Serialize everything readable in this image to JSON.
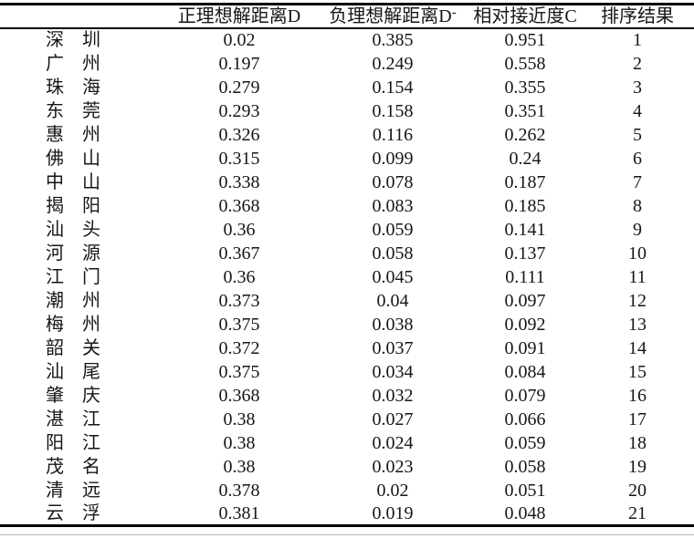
{
  "table": {
    "header": {
      "city": "",
      "d_plus": "正理想解距离D",
      "d_minus_main": "负理想解距离D",
      "d_minus_sup": "-",
      "closeness": "相对接近度C",
      "rank": "排序结果"
    },
    "rows": [
      {
        "city": "深　圳",
        "d_plus": "0.02",
        "d_minus": "0.385",
        "closeness": "0.951",
        "rank": "1"
      },
      {
        "city": "广　州",
        "d_plus": "0.197",
        "d_minus": "0.249",
        "closeness": "0.558",
        "rank": "2"
      },
      {
        "city": "珠　海",
        "d_plus": "0.279",
        "d_minus": "0.154",
        "closeness": "0.355",
        "rank": "3"
      },
      {
        "city": "东　莞",
        "d_plus": "0.293",
        "d_minus": "0.158",
        "closeness": "0.351",
        "rank": "4"
      },
      {
        "city": "惠　州",
        "d_plus": "0.326",
        "d_minus": "0.116",
        "closeness": "0.262",
        "rank": "5"
      },
      {
        "city": "佛　山",
        "d_plus": "0.315",
        "d_minus": "0.099",
        "closeness": "0.24",
        "rank": "6"
      },
      {
        "city": "中　山",
        "d_plus": "0.338",
        "d_minus": "0.078",
        "closeness": "0.187",
        "rank": "7"
      },
      {
        "city": "揭　阳",
        "d_plus": "0.368",
        "d_minus": "0.083",
        "closeness": "0.185",
        "rank": "8"
      },
      {
        "city": "汕　头",
        "d_plus": "0.36",
        "d_minus": "0.059",
        "closeness": "0.141",
        "rank": "9"
      },
      {
        "city": "河　源",
        "d_plus": "0.367",
        "d_minus": "0.058",
        "closeness": "0.137",
        "rank": "10"
      },
      {
        "city": "江　门",
        "d_plus": "0.36",
        "d_minus": "0.045",
        "closeness": "0.111",
        "rank": "11"
      },
      {
        "city": "潮　州",
        "d_plus": "0.373",
        "d_minus": "0.04",
        "closeness": "0.097",
        "rank": "12"
      },
      {
        "city": "梅　州",
        "d_plus": "0.375",
        "d_minus": "0.038",
        "closeness": "0.092",
        "rank": "13"
      },
      {
        "city": "韶　关",
        "d_plus": "0.372",
        "d_minus": "0.037",
        "closeness": "0.091",
        "rank": "14"
      },
      {
        "city": "汕　尾",
        "d_plus": "0.375",
        "d_minus": "0.034",
        "closeness": "0.084",
        "rank": "15"
      },
      {
        "city": "肇　庆",
        "d_plus": "0.368",
        "d_minus": "0.032",
        "closeness": "0.079",
        "rank": "16"
      },
      {
        "city": "湛　江",
        "d_plus": "0.38",
        "d_minus": "0.027",
        "closeness": "0.066",
        "rank": "17"
      },
      {
        "city": "阳　江",
        "d_plus": "0.38",
        "d_minus": "0.024",
        "closeness": "0.059",
        "rank": "18"
      },
      {
        "city": "茂　名",
        "d_plus": "0.38",
        "d_minus": "0.023",
        "closeness": "0.058",
        "rank": "19"
      },
      {
        "city": "清　远",
        "d_plus": "0.378",
        "d_minus": "0.02",
        "closeness": "0.051",
        "rank": "20"
      },
      {
        "city": "云　浮",
        "d_plus": "0.381",
        "d_minus": "0.019",
        "closeness": "0.048",
        "rank": "21"
      }
    ]
  },
  "colors": {
    "text": "#161616",
    "rule": "#000000",
    "ghost_rule": "#b7b7b7",
    "background": "#ffffff"
  }
}
